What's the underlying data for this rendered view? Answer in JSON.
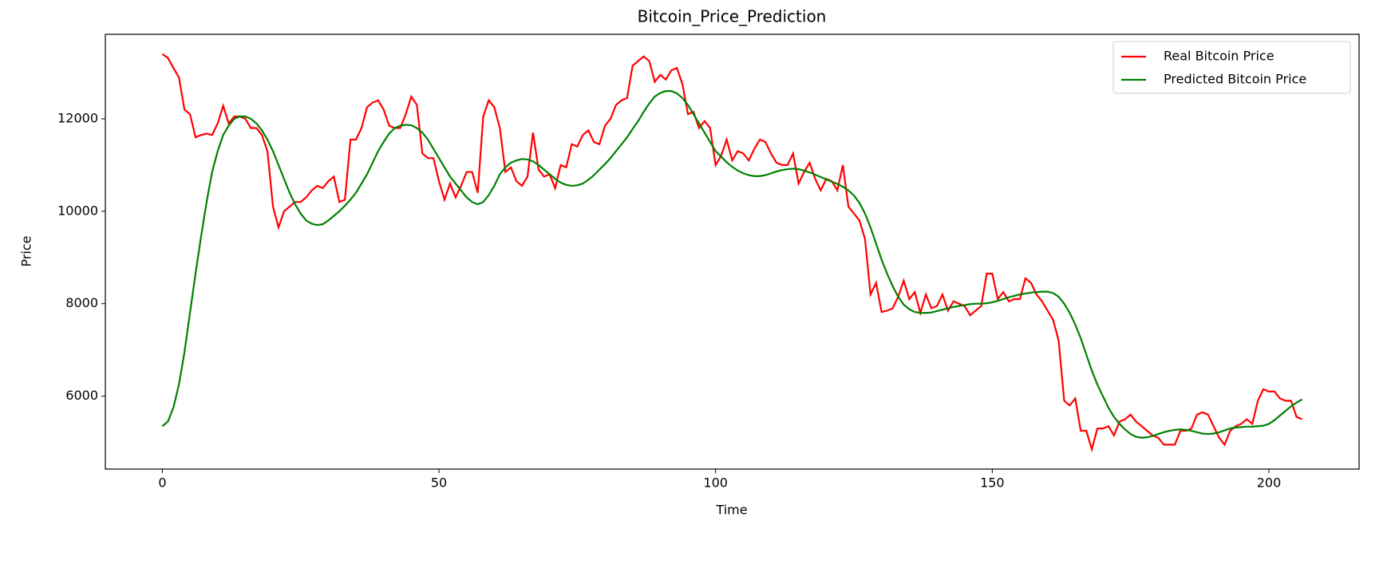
{
  "chart_data": {
    "type": "line",
    "title": "Bitcoin_Price_Prediction",
    "x_label": "Time",
    "y_label": "Price",
    "x": [
      0,
      1,
      2,
      3,
      4,
      5,
      6,
      7,
      8,
      9,
      10,
      11,
      12,
      13,
      14,
      15,
      16,
      17,
      18,
      19,
      20,
      21,
      22,
      23,
      24,
      25,
      26,
      27,
      28,
      29,
      30,
      31,
      32,
      33,
      34,
      35,
      36,
      37,
      38,
      39,
      40,
      41,
      42,
      43,
      44,
      45,
      46,
      47,
      48,
      49,
      50,
      51,
      52,
      53,
      54,
      55,
      56,
      57,
      58,
      59,
      60,
      61,
      62,
      63,
      64,
      65,
      66,
      67,
      68,
      69,
      70,
      71,
      72,
      73,
      74,
      75,
      76,
      77,
      78,
      79,
      80,
      81,
      82,
      83,
      84,
      85,
      86,
      87,
      88,
      89,
      90,
      91,
      92,
      93,
      94,
      95,
      96,
      97,
      98,
      99,
      100,
      101,
      102,
      103,
      104,
      105,
      106,
      107,
      108,
      109,
      110,
      111,
      112,
      113,
      114,
      115,
      116,
      117,
      118,
      119,
      120,
      121,
      122,
      123,
      124,
      125,
      126,
      127,
      128,
      129,
      130,
      131,
      132,
      133,
      134,
      135,
      136,
      137,
      138,
      139,
      140,
      141,
      142,
      143,
      144,
      145,
      146,
      147,
      148,
      149,
      150,
      151,
      152,
      153,
      154,
      155,
      156,
      157,
      158,
      159,
      160,
      161,
      162,
      163,
      164,
      165,
      166,
      167,
      168,
      169,
      170,
      171,
      172,
      173,
      174,
      175,
      176,
      177,
      178,
      179,
      180,
      181,
      182,
      183,
      184,
      185,
      186,
      187,
      188,
      189,
      190,
      191,
      192,
      193,
      194,
      195,
      196,
      197,
      198,
      199,
      200,
      201,
      202,
      203,
      204,
      205,
      206
    ],
    "series": [
      {
        "name": "Real Bitcoin Price",
        "color": "red",
        "values": [
          13400,
          13320,
          13100,
          12900,
          12200,
          12100,
          11600,
          11650,
          11680,
          11650,
          11900,
          12280,
          11900,
          12050,
          12050,
          12000,
          11800,
          11800,
          11650,
          11300,
          10100,
          9650,
          10000,
          10100,
          10200,
          10200,
          10300,
          10450,
          10550,
          10500,
          10650,
          10750,
          10200,
          10250,
          11550,
          11550,
          11800,
          12250,
          12350,
          12400,
          12200,
          11850,
          11800,
          11800,
          12100,
          12480,
          12300,
          11250,
          11150,
          11150,
          10650,
          10250,
          10600,
          10300,
          10550,
          10850,
          10850,
          10400,
          12050,
          12400,
          12250,
          11800,
          10850,
          10950,
          10650,
          10550,
          10750,
          11700,
          10900,
          10750,
          10800,
          10500,
          11000,
          10950,
          11450,
          11400,
          11650,
          11750,
          11500,
          11450,
          11850,
          12000,
          12300,
          12400,
          12450,
          13150,
          13250,
          13350,
          13250,
          12800,
          12950,
          12850,
          13050,
          13100,
          12750,
          12100,
          12150,
          11800,
          11950,
          11800,
          11000,
          11200,
          11550,
          11100,
          11300,
          11250,
          11100,
          11350,
          11550,
          11500,
          11250,
          11050,
          11000,
          11000,
          11250,
          10600,
          10850,
          11050,
          10700,
          10450,
          10700,
          10650,
          10450,
          11000,
          10100,
          9950,
          9800,
          9400,
          8200,
          8450,
          7820,
          7850,
          7900,
          8150,
          8500,
          8100,
          8250,
          7800,
          8200,
          7900,
          7950,
          8200,
          7850,
          8050,
          8000,
          7950,
          7750,
          7850,
          7950,
          8650,
          8650,
          8100,
          8250,
          8050,
          8100,
          8100,
          8550,
          8450,
          8200,
          8050,
          7850,
          7650,
          7200,
          5900,
          5800,
          5950,
          5250,
          5250,
          4850,
          5300,
          5300,
          5350,
          5150,
          5450,
          5500,
          5600,
          5450,
          5350,
          5250,
          5150,
          5100,
          4950,
          4950,
          4950,
          5250,
          5250,
          5300,
          5600,
          5650,
          5600,
          5350,
          5100,
          4950,
          5250,
          5350,
          5400,
          5500,
          5400,
          5900,
          6150,
          6100,
          6100,
          5950,
          5900,
          5900,
          5550,
          5500
        ]
      },
      {
        "name": "Predicted Bitcoin Price",
        "color": "green",
        "values": [
          5350,
          5450,
          5750,
          6250,
          6950,
          7800,
          8650,
          9450,
          10200,
          10850,
          11300,
          11650,
          11850,
          12000,
          12050,
          12050,
          12000,
          11900,
          11750,
          11550,
          11300,
          11000,
          10700,
          10400,
          10150,
          9950,
          9800,
          9730,
          9700,
          9720,
          9800,
          9900,
          10000,
          10120,
          10250,
          10400,
          10600,
          10800,
          11050,
          11300,
          11500,
          11680,
          11800,
          11850,
          11870,
          11860,
          11800,
          11700,
          11550,
          11350,
          11150,
          10950,
          10750,
          10600,
          10450,
          10300,
          10200,
          10150,
          10200,
          10350,
          10550,
          10800,
          10950,
          11050,
          11100,
          11130,
          11120,
          11080,
          11000,
          10900,
          10800,
          10700,
          10620,
          10570,
          10550,
          10560,
          10600,
          10680,
          10780,
          10900,
          11020,
          11150,
          11300,
          11450,
          11600,
          11780,
          11950,
          12150,
          12330,
          12480,
          12560,
          12600,
          12600,
          12550,
          12450,
          12300,
          12100,
          11900,
          11700,
          11500,
          11300,
          11180,
          11060,
          10960,
          10880,
          10820,
          10780,
          10760,
          10760,
          10780,
          10820,
          10860,
          10890,
          10910,
          10920,
          10910,
          10880,
          10840,
          10790,
          10740,
          10690,
          10640,
          10590,
          10530,
          10450,
          10340,
          10180,
          9950,
          9650,
          9300,
          8950,
          8650,
          8380,
          8150,
          7980,
          7880,
          7820,
          7800,
          7800,
          7810,
          7840,
          7870,
          7900,
          7930,
          7950,
          7970,
          7990,
          8000,
          8000,
          8010,
          8030,
          8060,
          8100,
          8140,
          8170,
          8200,
          8220,
          8240,
          8250,
          8260,
          8260,
          8230,
          8150,
          8000,
          7800,
          7550,
          7250,
          6900,
          6550,
          6250,
          6000,
          5750,
          5550,
          5400,
          5280,
          5180,
          5120,
          5100,
          5110,
          5140,
          5180,
          5220,
          5250,
          5270,
          5280,
          5270,
          5250,
          5220,
          5190,
          5180,
          5190,
          5220,
          5260,
          5300,
          5320,
          5330,
          5340,
          5340,
          5350,
          5360,
          5400,
          5480,
          5580,
          5680,
          5780,
          5860,
          5930
        ]
      }
    ],
    "xlim": [
      -10.3,
      216.3
    ],
    "ylim": [
      4422,
      13828
    ],
    "xticks": [
      0,
      50,
      100,
      150,
      200
    ],
    "yticks": [
      6000,
      8000,
      10000,
      12000
    ],
    "grid": false,
    "legend": "upper right"
  }
}
